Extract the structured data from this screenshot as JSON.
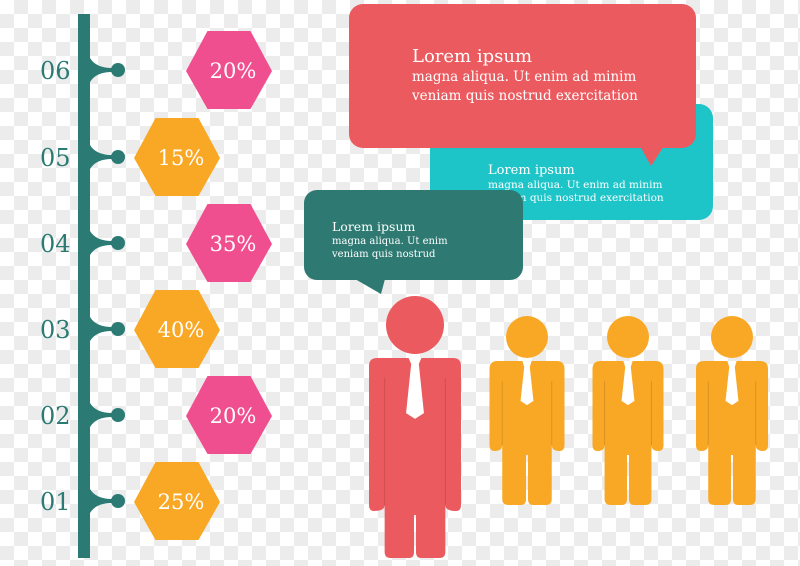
{
  "colors": {
    "teal_dark": "#2b7a74",
    "pink": "#f04f8f",
    "orange": "#f9a825",
    "red": "#eb5a5e",
    "cyan": "#1ec5c8",
    "teal_bubble": "#2e7a73"
  },
  "timeline": [
    {
      "label": "06",
      "value": "20%",
      "color": "pink"
    },
    {
      "label": "05",
      "value": "15%",
      "color": "orange"
    },
    {
      "label": "04",
      "value": "35%",
      "color": "pink"
    },
    {
      "label": "03",
      "value": "40%",
      "color": "orange"
    },
    {
      "label": "02",
      "value": "20%",
      "color": "pink"
    },
    {
      "label": "01",
      "value": "25%",
      "color": "orange"
    }
  ],
  "bubbles": {
    "red": {
      "title": "Lorem ipsum",
      "line1": "magna aliqua. Ut enim ad minim",
      "line2": "veniam quis nostrud exercitation"
    },
    "cyan": {
      "title": "Lorem ipsum",
      "line1": "magna aliqua. Ut enim ad minim",
      "line2": "veniam quis nostrud exercitation"
    },
    "teal": {
      "title": "Lorem ipsum",
      "line1": "magna aliqua. Ut enim",
      "line2": "veniam quis nostrud"
    }
  },
  "people": [
    {
      "color": "red",
      "role": "leader"
    },
    {
      "color": "orange"
    },
    {
      "color": "orange"
    },
    {
      "color": "orange"
    }
  ]
}
